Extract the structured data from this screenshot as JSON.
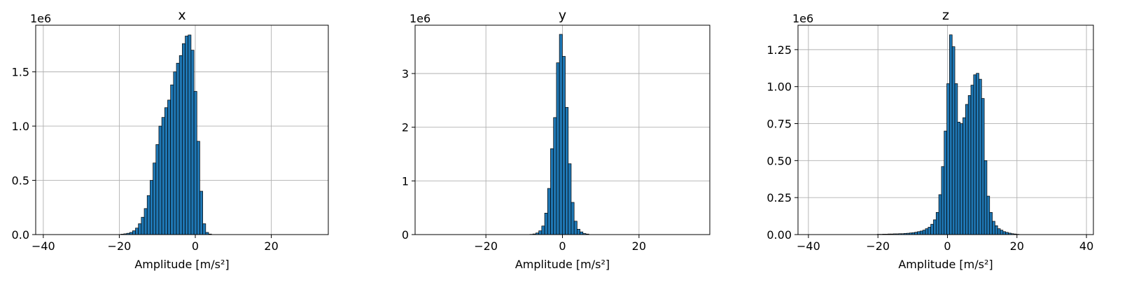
{
  "chart_data": [
    {
      "type": "bar",
      "title": "x",
      "xlabel": "Amplitude [m/s²]",
      "ylabel": "",
      "offset_label": "1e6",
      "xlim": [
        -42,
        35
      ],
      "ylim": [
        0,
        1.93
      ],
      "xticks": [
        -40,
        -20,
        0,
        20
      ],
      "xtick_labels": [
        "−40",
        "−20",
        "0",
        "20"
      ],
      "yticks": [
        0,
        0.5,
        1.0,
        1.5
      ],
      "ytick_labels": [
        "0.0",
        "0.5",
        "1.0",
        "1.5"
      ],
      "grid": true,
      "bar_color": "#1f77b4",
      "bin_width": 0.77,
      "bins_start": -19.6,
      "values": [
        0.004,
        0.007,
        0.012,
        0.02,
        0.035,
        0.06,
        0.1,
        0.16,
        0.24,
        0.36,
        0.5,
        0.66,
        0.83,
        1.0,
        1.08,
        1.17,
        1.24,
        1.38,
        1.5,
        1.58,
        1.65,
        1.76,
        1.83,
        1.84,
        1.7,
        1.32,
        0.86,
        0.4,
        0.1,
        0.02,
        0.005
      ]
    },
    {
      "type": "bar",
      "title": "y",
      "xlabel": "Amplitude [m/s²]",
      "ylabel": "",
      "offset_label": "1e6",
      "xlim": [
        -38.5,
        38.5
      ],
      "ylim": [
        0,
        3.9
      ],
      "xticks": [
        -20,
        0,
        20
      ],
      "xtick_labels": [
        "−20",
        "0",
        "20"
      ],
      "yticks": [
        0,
        1,
        2,
        3
      ],
      "ytick_labels": [
        "0",
        "1",
        "2",
        "3"
      ],
      "grid": true,
      "bar_color": "#1f77b4",
      "bin_width": 0.77,
      "bins_start": -8.5,
      "values": [
        0.005,
        0.012,
        0.03,
        0.07,
        0.16,
        0.4,
        0.86,
        1.6,
        2.18,
        3.2,
        3.73,
        3.32,
        2.37,
        1.32,
        0.6,
        0.25,
        0.1,
        0.05,
        0.02,
        0.01
      ]
    },
    {
      "type": "bar",
      "title": "z",
      "xlabel": "Amplitude [m/s²]",
      "ylabel": "",
      "offset_label": "1e6",
      "xlim": [
        -43,
        42
      ],
      "ylim": [
        0,
        1.415
      ],
      "xticks": [
        -40,
        -20,
        0,
        20,
        40
      ],
      "xtick_labels": [
        "−40",
        "−20",
        "0",
        "20",
        "40"
      ],
      "yticks": [
        0,
        0.25,
        0.5,
        0.75,
        1.0,
        1.25
      ],
      "ytick_labels": [
        "0.00",
        "0.25",
        "0.50",
        "0.75",
        "1.00",
        "1.25"
      ],
      "grid": true,
      "bar_color": "#1f77b4",
      "bin_width": 0.77,
      "bins_start": -20.2,
      "values": [
        0.002,
        0.002,
        0.003,
        0.003,
        0.004,
        0.004,
        0.005,
        0.005,
        0.006,
        0.006,
        0.008,
        0.009,
        0.011,
        0.013,
        0.016,
        0.02,
        0.024,
        0.03,
        0.04,
        0.05,
        0.07,
        0.1,
        0.15,
        0.27,
        0.46,
        0.7,
        1.02,
        1.35,
        1.27,
        1.02,
        0.76,
        0.75,
        0.79,
        0.88,
        0.94,
        1.01,
        1.08,
        1.09,
        1.05,
        0.92,
        0.5,
        0.26,
        0.15,
        0.09,
        0.06,
        0.04,
        0.03,
        0.02,
        0.015,
        0.01,
        0.006,
        0.004,
        0.002
      ]
    }
  ]
}
